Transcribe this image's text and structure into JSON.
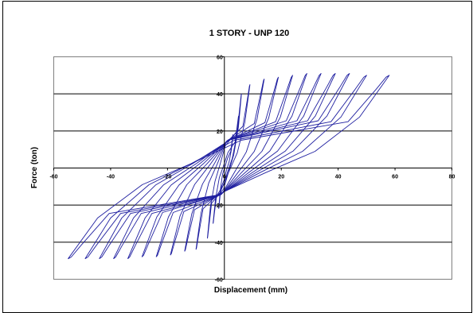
{
  "chart_data": {
    "type": "line",
    "title": "1 STORY - UNP 120",
    "xlabel": "Displacement (mm)",
    "ylabel": "Force (ton)",
    "xlim": [
      -60,
      80
    ],
    "ylim": [
      -60,
      60
    ],
    "x_ticks": [
      -60,
      -40,
      -20,
      0,
      20,
      40,
      60,
      80
    ],
    "y_ticks": [
      -60,
      -40,
      -20,
      0,
      20,
      40,
      60
    ],
    "grid": {
      "horizontal": true,
      "vertical": false
    },
    "legend": "none",
    "line_color": "#1f1fa0",
    "series": [
      {
        "loops": [
          {
            "peak_x": 3,
            "peak_y": 18,
            "min_x": -2,
            "min_y": -22
          },
          {
            "peak_x": 5,
            "peak_y": 28,
            "min_x": -4,
            "min_y": -30
          },
          {
            "peak_x": 6,
            "peak_y": 40,
            "min_x": -6,
            "min_y": -38
          },
          {
            "peak_x": 9,
            "peak_y": 45,
            "min_x": -10,
            "min_y": -44
          },
          {
            "peak_x": 14,
            "peak_y": 48,
            "min_x": -14,
            "min_y": -45
          },
          {
            "peak_x": 19,
            "peak_y": 49,
            "min_x": -19,
            "min_y": -47
          },
          {
            "peak_x": 24,
            "peak_y": 50,
            "min_x": -24,
            "min_y": -48
          },
          {
            "peak_x": 29,
            "peak_y": 51,
            "min_x": -29,
            "min_y": -48
          },
          {
            "peak_x": 34,
            "peak_y": 51,
            "min_x": -34,
            "min_y": -49
          },
          {
            "peak_x": 39,
            "peak_y": 51,
            "min_x": -39,
            "min_y": -49
          },
          {
            "peak_x": 44,
            "peak_y": 51,
            "min_x": -44,
            "min_y": -49
          },
          {
            "peak_x": 50,
            "peak_y": 50,
            "min_x": -49,
            "min_y": -49
          },
          {
            "peak_x": 58,
            "peak_y": 50,
            "min_x": -55,
            "min_y": -49
          }
        ]
      }
    ]
  }
}
